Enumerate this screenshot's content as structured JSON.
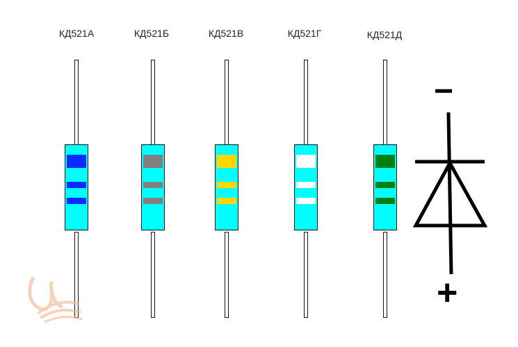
{
  "diodes": [
    {
      "label": "КД521А",
      "band_color": "#0a2cff"
    },
    {
      "label": "КД521Б",
      "band_color": "#808080"
    },
    {
      "label": "КД521В",
      "band_color": "#ffd700"
    },
    {
      "label": "КД521Г",
      "band_color": "#ffffff"
    },
    {
      "label": "КД521Д",
      "band_color": "#008010"
    }
  ],
  "symbol": {
    "minus": "−",
    "plus": "+"
  }
}
